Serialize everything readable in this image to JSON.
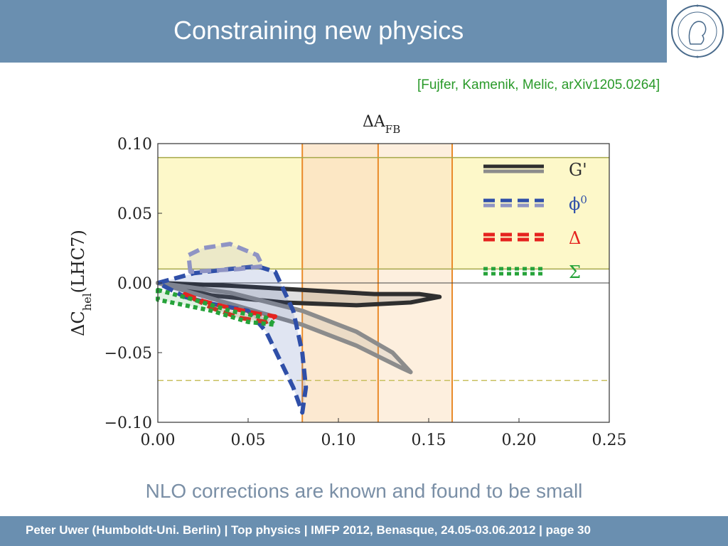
{
  "slide": {
    "title": "Constraining new physics",
    "citation": "[Fujfer, Kamenik, Melic, arXiv1205.0264]",
    "caption": "NLO corrections are known and found to be small",
    "footer": "Peter Uwer  (Humboldt-Uni. Berlin)  |  Top physics    |  IMFP 2012, Benasque, 24.05-03.06.2012  |  page 30"
  },
  "chart_data": {
    "type": "scatter",
    "title": "ΔA",
    "title_sub": "FB",
    "ylabel_main": "ΔC",
    "ylabel_sub": "hel",
    "ylabel_rest": "(LHC7)",
    "xlim": [
      0.0,
      0.25
    ],
    "ylim": [
      -0.1,
      0.1
    ],
    "x_ticks": [
      0.0,
      0.05,
      0.1,
      0.15,
      0.2,
      0.25
    ],
    "x_tick_labels": [
      "0.00",
      "0.05",
      "0.10",
      "0.15",
      "0.20",
      "0.25"
    ],
    "y_ticks": [
      -0.1,
      -0.05,
      0.0,
      0.05,
      0.1
    ],
    "y_tick_labels": [
      "−0.10",
      "−0.05",
      "0.00",
      "0.05",
      "0.10"
    ],
    "grid": false,
    "legend_position": "top-right",
    "colors": {
      "g_prime": "#2f2f2f",
      "g_prime_light": "#8c8c8c",
      "phi0": "#2f4fa8",
      "phi0_light": "#8f94c4",
      "delta": "#e5231f",
      "sigma": "#26a33a",
      "yellow_band": "#fdf8c9",
      "orange_band": "#fbe2c2",
      "orange_line": "#e98a2a",
      "olive_line": "#a6a84a",
      "dashed_line": "#c8c060"
    },
    "bands": {
      "horizontal_allowed": [
        0.01,
        0.09
      ],
      "vertical_inner": [
        0.08,
        0.122
      ],
      "vertical_outer": [
        0.122,
        0.163
      ],
      "dashed_y": -0.07
    },
    "series": [
      {
        "name": "G'",
        "color": "#2f2f2f",
        "style": "solid",
        "points": [
          [
            0.0,
            0.0
          ],
          [
            0.04,
            -0.002
          ],
          [
            0.08,
            -0.005
          ],
          [
            0.12,
            -0.008
          ],
          [
            0.145,
            -0.008
          ],
          [
            0.156,
            -0.01
          ],
          [
            0.14,
            -0.014
          ],
          [
            0.11,
            -0.016
          ],
          [
            0.07,
            -0.014
          ],
          [
            0.03,
            -0.009
          ],
          [
            0.0,
            0.0
          ]
        ]
      },
      {
        "name": "G' (light)",
        "color": "#8c8c8c",
        "style": "solid",
        "points": [
          [
            0.0,
            0.0
          ],
          [
            0.04,
            -0.007
          ],
          [
            0.08,
            -0.02
          ],
          [
            0.11,
            -0.035
          ],
          [
            0.13,
            -0.05
          ],
          [
            0.14,
            -0.064
          ],
          [
            0.135,
            -0.061
          ],
          [
            0.11,
            -0.045
          ],
          [
            0.08,
            -0.03
          ],
          [
            0.04,
            -0.015
          ],
          [
            0.0,
            0.0
          ]
        ]
      },
      {
        "name": "φ",
        "color": "#2f4fa8",
        "style": "dashed",
        "points": [
          [
            0.0,
            0.0
          ],
          [
            0.02,
            0.007
          ],
          [
            0.04,
            0.01
          ],
          [
            0.055,
            0.012
          ],
          [
            0.065,
            0.008
          ],
          [
            0.075,
            -0.02
          ],
          [
            0.08,
            -0.05
          ],
          [
            0.082,
            -0.075
          ],
          [
            0.08,
            -0.093
          ],
          [
            0.075,
            -0.075
          ],
          [
            0.06,
            -0.035
          ],
          [
            0.05,
            -0.02
          ],
          [
            0.03,
            -0.015
          ],
          [
            0.015,
            -0.01
          ],
          [
            0.0,
            0.0
          ]
        ]
      },
      {
        "name": "φ (light)",
        "color": "#8f94c4",
        "style": "dashed",
        "points": [
          [
            0.018,
            0.008
          ],
          [
            0.017,
            0.02
          ],
          [
            0.025,
            0.025
          ],
          [
            0.04,
            0.028
          ],
          [
            0.055,
            0.02
          ],
          [
            0.058,
            0.012
          ],
          [
            0.045,
            0.01
          ],
          [
            0.018,
            0.008
          ]
        ]
      },
      {
        "name": "Δ",
        "color": "#e5231f",
        "style": "dashed",
        "points": [
          [
            0.015,
            -0.008
          ],
          [
            0.025,
            -0.013
          ],
          [
            0.04,
            -0.018
          ],
          [
            0.055,
            -0.022
          ],
          [
            0.065,
            -0.024
          ],
          [
            0.06,
            -0.028
          ],
          [
            0.045,
            -0.025
          ],
          [
            0.03,
            -0.018
          ],
          [
            0.015,
            -0.008
          ]
        ]
      },
      {
        "name": "Σ",
        "color": "#26a33a",
        "style": "dotted",
        "points": [
          [
            0.0,
            -0.005
          ],
          [
            0.02,
            -0.012
          ],
          [
            0.04,
            -0.02
          ],
          [
            0.06,
            -0.025
          ],
          [
            0.065,
            -0.03
          ],
          [
            0.05,
            -0.028
          ],
          [
            0.03,
            -0.02
          ],
          [
            0.0,
            -0.012
          ],
          [
            0.0,
            -0.005
          ]
        ]
      }
    ],
    "legend": [
      {
        "label": "G'",
        "sup": "",
        "color_main": "#2f2f2f",
        "color_light": "#8c8c8c",
        "style": "solid",
        "text_color": "#2f2f2f"
      },
      {
        "label": "ϕ",
        "sup": "0",
        "color_main": "#2f4fa8",
        "color_light": "#8f94c4",
        "style": "dashed",
        "text_color": "#2f4fa8"
      },
      {
        "label": "Δ",
        "sup": "",
        "color_main": "#e5231f",
        "color_light": "#e5231f",
        "style": "dashed",
        "text_color": "#e5231f"
      },
      {
        "label": "Σ",
        "sup": "",
        "color_main": "#26a33a",
        "color_light": "#26a33a",
        "style": "dotted",
        "text_color": "#26a33a"
      }
    ]
  }
}
